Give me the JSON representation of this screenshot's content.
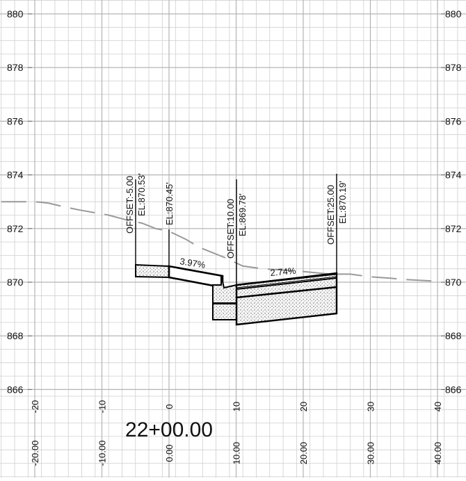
{
  "station_label": "22+00.00",
  "elevation_labels": [
    "880",
    "878",
    "876",
    "874",
    "872",
    "870",
    "868",
    "866"
  ],
  "offset_labels": [
    "-20",
    "-10",
    "0",
    "10",
    "20",
    "30",
    "40"
  ],
  "offset_labels_bottom": [
    "-20.00",
    "-10.00",
    "0.00",
    "10.00",
    "20.00",
    "30.00",
    "40.00"
  ],
  "grades": {
    "left": "3.97%",
    "right": "2.74%"
  },
  "callouts": [
    {
      "offset_text": "OFFSET:-5.00",
      "elevation_text": "EL:870.53'"
    },
    {
      "offset_text": "",
      "elevation_text": "EL:870.45'"
    },
    {
      "offset_text": "OFFSET:10.00",
      "elevation_text": "EL:869.78'"
    },
    {
      "offset_text": "OFFSET:25.00",
      "elevation_text": "EL:870.19'"
    }
  ],
  "section_data": {
    "offset_range": [
      -25,
      40
    ],
    "elevation_range": [
      865.5,
      880.5
    ],
    "existing_ground": [
      [
        -25,
        873.0
      ],
      [
        -23.5,
        873.0
      ],
      [
        -20,
        873.0
      ],
      [
        -18,
        872.95
      ],
      [
        -15.5,
        872.8
      ],
      [
        -13.5,
        872.7
      ],
      [
        -9,
        872.5
      ],
      [
        -6,
        872.3
      ],
      [
        -4,
        872.2
      ],
      [
        -2,
        872.0
      ],
      [
        0,
        871.9
      ],
      [
        2.5,
        871.6
      ],
      [
        4.5,
        871.3
      ],
      [
        5.5,
        871.2
      ],
      [
        8.5,
        870.9
      ],
      [
        11,
        870.6
      ],
      [
        14,
        870.5
      ],
      [
        17,
        870.45
      ],
      [
        20,
        870.4
      ],
      [
        24,
        870.3
      ],
      [
        27,
        870.3
      ],
      [
        30,
        870.2
      ],
      [
        33,
        870.15
      ],
      [
        35,
        870.1
      ],
      [
        39,
        870.05
      ],
      [
        40,
        870.05
      ]
    ],
    "callout_offsets": [
      -5,
      0,
      10,
      25
    ],
    "callout_elevations": [
      870.53,
      870.45,
      869.78,
      870.19
    ]
  }
}
